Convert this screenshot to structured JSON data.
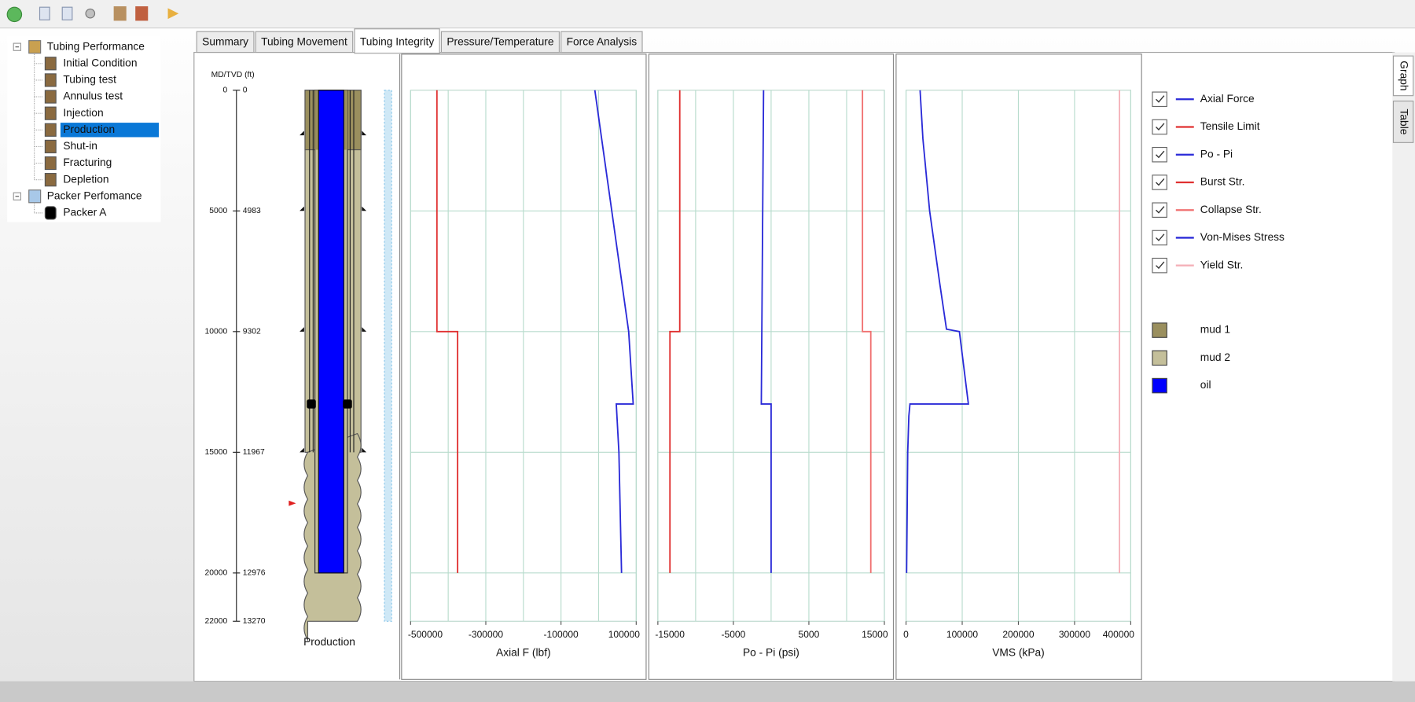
{
  "tree": [
    {
      "label": "Tubing Performance",
      "children": [
        {
          "label": "Initial Condition"
        },
        {
          "label": "Tubing test"
        },
        {
          "label": "Annulus test"
        },
        {
          "label": "Injection"
        },
        {
          "label": "Production",
          "selected": true
        },
        {
          "label": "Shut-in"
        },
        {
          "label": "Fracturing"
        },
        {
          "label": "Depletion"
        }
      ]
    },
    {
      "label": "Packer Perfomance",
      "children": [
        {
          "label": "Packer A"
        }
      ]
    }
  ],
  "tabs": [
    {
      "label": "Summary"
    },
    {
      "label": "Tubing Movement"
    },
    {
      "label": "Tubing Integrity",
      "active": true
    },
    {
      "label": "Pressure/Temperature"
    },
    {
      "label": "Force Analysis"
    }
  ],
  "side_tabs": [
    {
      "label": "Graph",
      "active": true
    },
    {
      "label": "Table"
    }
  ],
  "wellbore": {
    "axis_label": "MD/TVD (ft)",
    "ylim": [
      0,
      22000
    ],
    "ticks": [
      {
        "md": 0,
        "tvd": 0
      },
      {
        "md": 5000,
        "tvd": 4983
      },
      {
        "md": 10000,
        "tvd": 9302
      },
      {
        "md": 15000,
        "tvd": 11967
      },
      {
        "md": 20000,
        "tvd": 12976
      },
      {
        "md": 22000,
        "tvd": 13270
      }
    ],
    "caption": "Production"
  },
  "chart_data": [
    {
      "type": "line",
      "xlabel": "Axial F (lbf)",
      "xlim": [
        -500000,
        100000
      ],
      "xticks": [
        -500000,
        -300000,
        -100000,
        100000
      ],
      "xgrid": [
        -400000,
        -200000,
        0
      ],
      "ygrid": [
        5000,
        10000,
        15000,
        20000
      ],
      "series": [
        {
          "name": "Axial Force",
          "color": "#2a2ad8",
          "checked": true,
          "depths": [
            0,
            5000,
            10000,
            13000,
            13000,
            15000,
            20000
          ],
          "values": [
            -10000,
            35000,
            80000,
            92000,
            47000,
            54000,
            61000
          ]
        },
        {
          "name": "Tensile Limit",
          "color": "#e03030",
          "checked": true,
          "depths": [
            0,
            10000,
            10000,
            20000
          ],
          "values": [
            -430000,
            -430000,
            -375000,
            -375000
          ]
        }
      ]
    },
    {
      "type": "line",
      "xlabel": "Po - Pi (psi)",
      "xlim": [
        -15000,
        15000
      ],
      "xticks": [
        -15000,
        -5000,
        5000,
        15000
      ],
      "xgrid": [
        -10000,
        0,
        10000
      ],
      "ygrid": [
        5000,
        10000,
        15000,
        20000
      ],
      "series": [
        {
          "name": "Po - Pi",
          "color": "#2a2ad8",
          "checked": true,
          "depths": [
            0,
            13000,
            13000,
            20000
          ],
          "values": [
            -1000,
            -1300,
            0,
            0
          ]
        },
        {
          "name": "Burst Str.",
          "color": "#e03030",
          "checked": true,
          "depths": [
            0,
            10000,
            10000,
            20000
          ],
          "values": [
            -12100,
            -12100,
            -13400,
            -13400
          ]
        },
        {
          "name": "Collapse Str.",
          "color": "#f07070",
          "checked": true,
          "depths": [
            0,
            10000,
            10000,
            20000
          ],
          "values": [
            12100,
            12100,
            13200,
            13200
          ]
        }
      ]
    },
    {
      "type": "line",
      "xlabel": "VMS (kPa)",
      "xlim": [
        0,
        400000
      ],
      "xticks": [
        0,
        100000,
        200000,
        300000,
        400000
      ],
      "xgrid": [],
      "ygrid": [
        5000,
        10000,
        15000,
        20000
      ],
      "series": [
        {
          "name": "Von-Mises Stress",
          "color": "#2a2ad8",
          "checked": true,
          "depths": [
            0,
            2000,
            5000,
            8000,
            9900,
            10000,
            13000,
            13000,
            13500,
            15000,
            20000
          ],
          "values": [
            25000,
            30000,
            42000,
            60000,
            72000,
            95000,
            111000,
            7000,
            5000,
            3000,
            1000
          ]
        },
        {
          "name": "Yield Str.",
          "color": "#f4b0b8",
          "checked": true,
          "depths": [
            0,
            20000
          ],
          "values": [
            380000,
            380000
          ]
        }
      ]
    }
  ],
  "materials": [
    {
      "name": "mud 1",
      "color": "#9a8f5e"
    },
    {
      "name": "mud 2",
      "color": "#c4bf9a"
    },
    {
      "name": "oil",
      "color": "#0000ff"
    }
  ]
}
